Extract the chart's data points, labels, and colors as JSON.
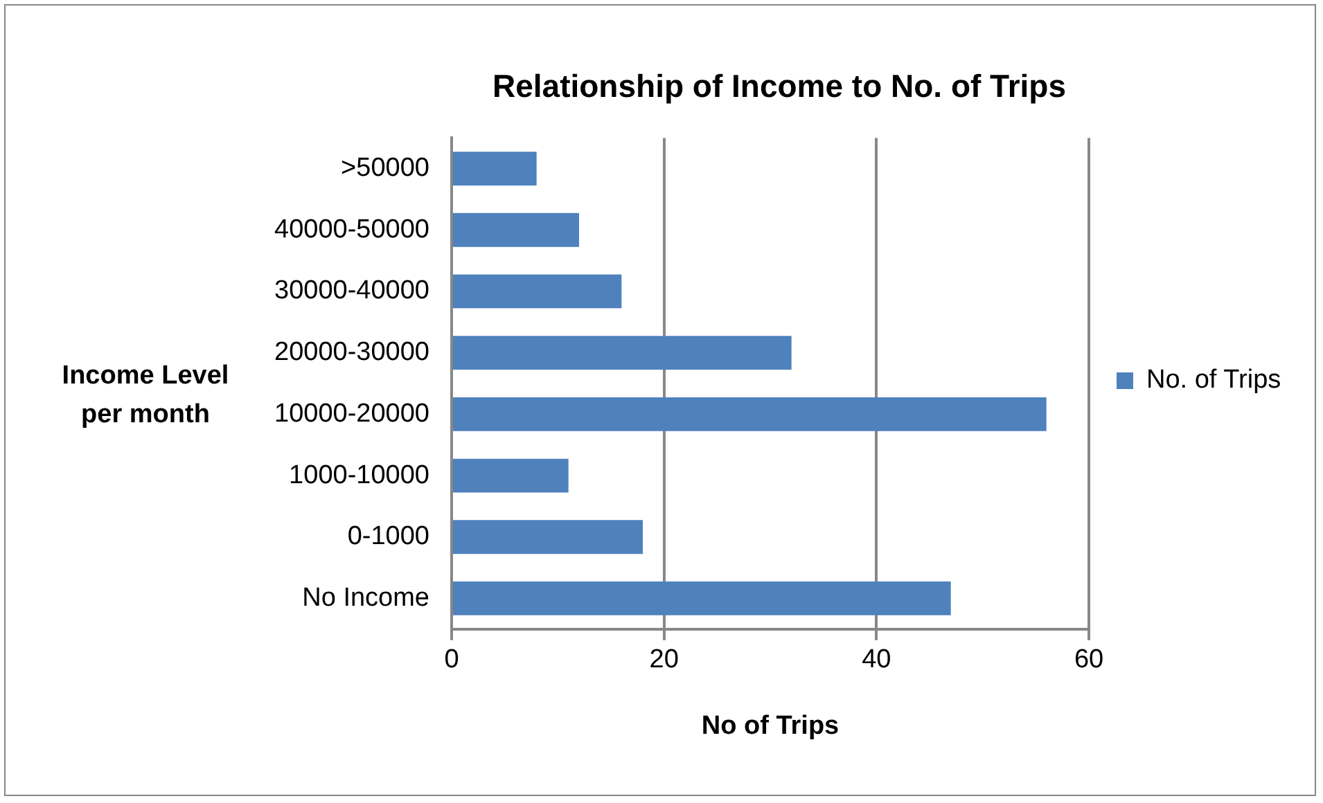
{
  "chart_data": {
    "type": "bar",
    "orientation": "horizontal",
    "title": "Relationship of Income to No. of Trips",
    "xlabel": "No of Trips",
    "ylabel": "Income Level per month",
    "categories": [
      ">50000",
      "40000-50000",
      "30000-40000",
      "20000-30000",
      "10000-20000",
      "1000-10000",
      "0-1000",
      "No Income"
    ],
    "series": [
      {
        "name": "No. of Trips",
        "color": "#4f81bd",
        "values": [
          8,
          12,
          16,
          32,
          56,
          11,
          18,
          47
        ]
      }
    ],
    "xlim": [
      0,
      60
    ],
    "xticks": [
      0,
      20,
      40,
      60
    ],
    "grid": "x",
    "legend": "right"
  }
}
